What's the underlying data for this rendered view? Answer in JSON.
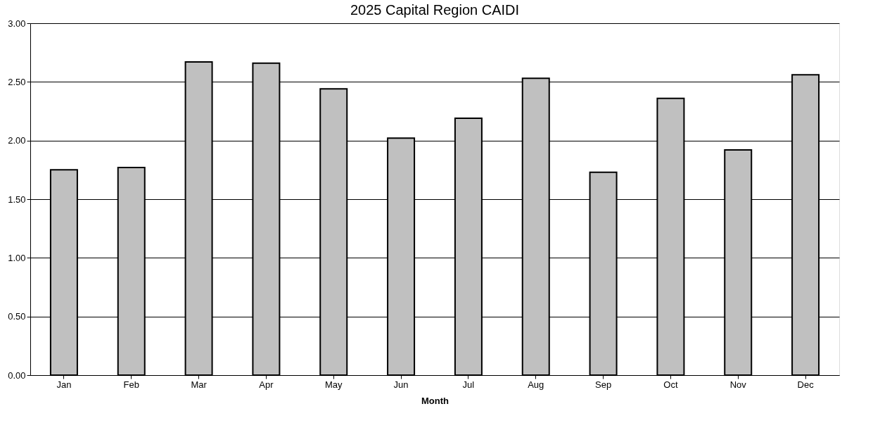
{
  "chart_data": {
    "type": "bar",
    "title": "2025 Capital Region CAIDI",
    "xlabel": "Month",
    "categories": [
      "Jan",
      "Feb",
      "Mar",
      "Apr",
      "May",
      "Jun",
      "Jul",
      "Aug",
      "Sep",
      "Oct",
      "Nov",
      "Dec"
    ],
    "values": [
      1.75,
      1.77,
      2.67,
      2.66,
      2.44,
      2.02,
      2.19,
      2.53,
      1.73,
      2.36,
      1.92,
      2.56
    ],
    "color": "#c0c0c0",
    "ylim": [
      0,
      3
    ],
    "yticks": [
      {
        "value": 0,
        "label": "0.00"
      },
      {
        "value": 0.5,
        "label": "0.50"
      },
      {
        "value": 1,
        "label": "1.00"
      },
      {
        "value": 1.5,
        "label": "1.50"
      },
      {
        "value": 2,
        "label": "2.00"
      },
      {
        "value": 2.5,
        "label": "2.50"
      },
      {
        "value": 3,
        "label": "3.00"
      }
    ],
    "grid": "y"
  }
}
